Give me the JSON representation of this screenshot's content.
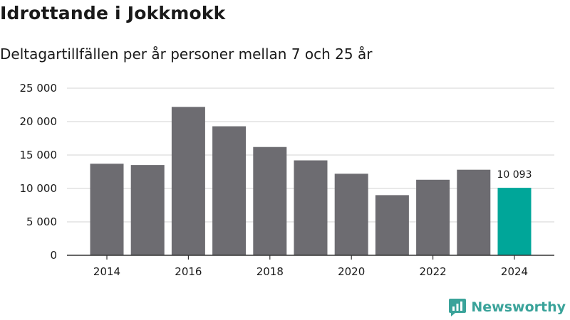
{
  "title": "Idrottande i Jokkmokk",
  "subtitle": "Deltagartillfällen per år personer mellan 7 och 25 år",
  "brand": {
    "name": "Newsworthy",
    "icon": "newsworthy-logo-icon",
    "color": "#3aa39a"
  },
  "colors": {
    "bar": "#6d6c71",
    "highlight": "#00a699",
    "grid": "#dcdcdc",
    "axis": "#333333"
  },
  "chart_data": {
    "type": "bar",
    "categories": [
      "2014",
      "2015",
      "2016",
      "2017",
      "2018",
      "2019",
      "2020",
      "2021",
      "2022",
      "2023",
      "2024"
    ],
    "values": [
      13700,
      13500,
      22200,
      19300,
      16200,
      14200,
      12200,
      9000,
      11300,
      12800,
      10093
    ],
    "highlight_index": 10,
    "data_labels": [
      {
        "index": 10,
        "text": "10 093"
      }
    ],
    "x_tick_labels": [
      "2014",
      "",
      "2016",
      "",
      "2018",
      "",
      "2020",
      "",
      "2022",
      "",
      "2024"
    ],
    "y_ticks": [
      0,
      5000,
      10000,
      15000,
      20000,
      25000
    ],
    "y_tick_labels": [
      "0",
      "5 000",
      "10 000",
      "15 000",
      "20 000",
      "25 000"
    ],
    "ylim": [
      0,
      25000
    ],
    "grid": true,
    "legend": "none"
  }
}
